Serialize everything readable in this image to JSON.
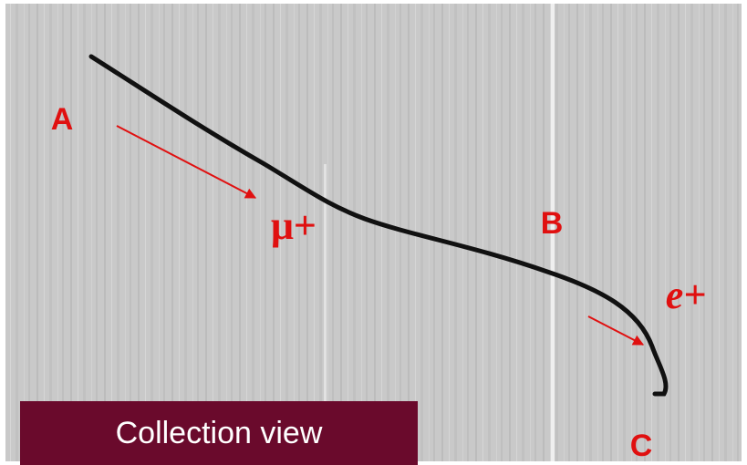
{
  "annotations": [
    {
      "text": "A"
    },
    {
      "text": "μ+"
    },
    {
      "text": "B"
    },
    {
      "text": "e+"
    },
    {
      "text": "C"
    }
  ],
  "caption": "Collection view"
}
